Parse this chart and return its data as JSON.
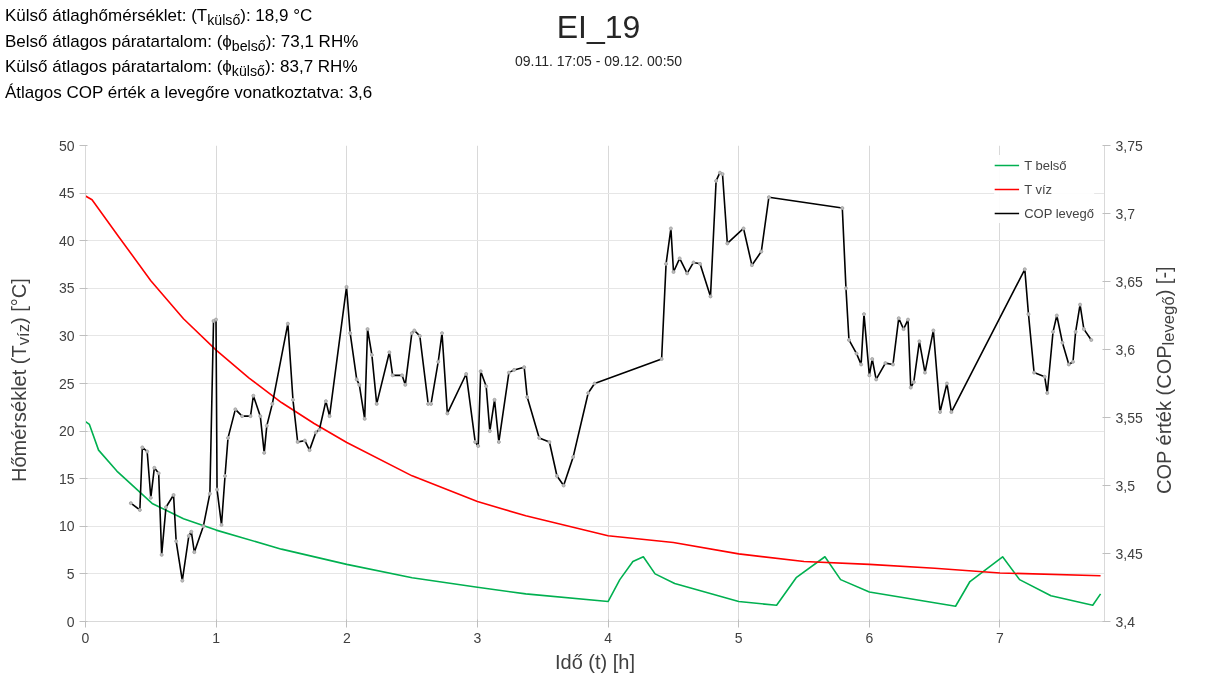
{
  "chart_data": {
    "type": "line",
    "title": "EI_19",
    "subtitle": "09.11. 17:05 - 09.12. 00:50",
    "annotations": [
      "Külső átlaghőmérséklet: (T$_{külső}$): 18,9 °C",
      "Belső átlagos páratartalom: (ϕ$_{belső}$): 73,1 RH%",
      "Külső átlagos páratartalom: (ϕ$_{külső}$): 83,7 RH%",
      "Átlagos COP érték a levegőre vonatkoztatva: 3,6"
    ],
    "xlabel": "Idő (t) [h]",
    "ylabel": "Hőmérséklet (T$_{víz}$) [°C]",
    "y2label": "COP érték (COP$_{levegő}$) [-]",
    "xlim": [
      0,
      7.8
    ],
    "xticks": [
      0,
      1,
      2,
      3,
      4,
      5,
      6,
      7
    ],
    "ylim": [
      0,
      50
    ],
    "yticks": [
      0,
      5,
      10,
      15,
      20,
      25,
      30,
      35,
      40,
      45,
      50
    ],
    "y2lim": [
      3.4,
      3.75
    ],
    "y2ticks": [
      {
        "value": 3.4,
        "label": "3,4"
      },
      {
        "value": 3.45,
        "label": "3,45"
      },
      {
        "value": 3.5,
        "label": "3,5"
      },
      {
        "value": 3.55,
        "label": "3,55"
      },
      {
        "value": 3.6,
        "label": "3,6"
      },
      {
        "value": 3.65,
        "label": "3,65"
      },
      {
        "value": 3.7,
        "label": "3,7"
      },
      {
        "value": 3.75,
        "label": "3,75"
      }
    ],
    "grid": true,
    "legend": "top right",
    "marker": "none",
    "line_style": "solid",
    "series": [
      {
        "name": "T belső",
        "color": "#00b050",
        "x": [
          0,
          0.03,
          0.1,
          0.24,
          0.51,
          0.75,
          1,
          1.5,
          2,
          2.5,
          3,
          3.37,
          4.0,
          4.09,
          4.19,
          4.27,
          4.36,
          4.51,
          5.0,
          5.29,
          5.44,
          5.66,
          5.78,
          6.0,
          6.66,
          6.77,
          7.02,
          7.15,
          7.39,
          7.71,
          7.77
        ],
        "values": [
          21.0,
          20.7,
          18.0,
          15.8,
          12.4,
          10.8,
          9.6,
          7.6,
          6.0,
          4.6,
          3.6,
          2.9,
          2.1,
          4.4,
          6.3,
          6.8,
          5.0,
          4.0,
          2.1,
          1.7,
          4.6,
          6.8,
          4.4,
          3.1,
          1.6,
          4.2,
          6.8,
          4.4,
          2.7,
          1.7,
          2.9
        ]
      },
      {
        "name": "T víz",
        "color": "#ff0000",
        "x": [
          0,
          0.05,
          0.25,
          0.5,
          0.75,
          1,
          1.25,
          1.5,
          1.75,
          2,
          2.5,
          3,
          3.37,
          4,
          4.5,
          5,
          5.5,
          6,
          6.5,
          7,
          7.77
        ],
        "values": [
          44.7,
          44.3,
          40.5,
          35.8,
          31.8,
          28.5,
          25.6,
          23.0,
          20.8,
          18.8,
          15.3,
          12.6,
          11.1,
          9.0,
          8.3,
          7.1,
          6.3,
          6.0,
          5.6,
          5.1,
          4.8
        ]
      },
      {
        "name": "COP levegő",
        "color": "#000000",
        "axis": "y2",
        "marker": "circle",
        "x": [
          0.347,
          0.416,
          0.435,
          0.472,
          0.5,
          0.527,
          0.56,
          0.583,
          0.616,
          0.674,
          0.694,
          0.741,
          0.791,
          0.81,
          0.833,
          0.902,
          0.952,
          0.98,
          0.999,
          1.007,
          1.041,
          1.068,
          1.091,
          1.147,
          1.199,
          1.263,
          1.285,
          1.338,
          1.368,
          1.388,
          1.43,
          1.549,
          1.588,
          1.624,
          1.679,
          1.715,
          1.763,
          1.79,
          1.84,
          1.868,
          1.998,
          2.026,
          2.076,
          2.096,
          2.137,
          2.159,
          2.192,
          2.229,
          2.326,
          2.351,
          2.423,
          2.448,
          2.498,
          2.517,
          2.559,
          2.623,
          2.645,
          2.7,
          2.729,
          2.77,
          2.914,
          2.983,
          3.006,
          3.025,
          3.067,
          3.095,
          3.131,
          3.164,
          3.241,
          3.281,
          3.358,
          3.381,
          3.473,
          3.551,
          3.609,
          3.66,
          3.733,
          3.848,
          3.897,
          4.41,
          4.444,
          4.481,
          4.501,
          4.548,
          4.605,
          4.654,
          4.704,
          4.784,
          4.827,
          4.856,
          4.876,
          4.913,
          5.037,
          5.101,
          5.173,
          5.231,
          5.793,
          5.821,
          5.844,
          5.902,
          5.937,
          5.959,
          6.0,
          6.022,
          6.052,
          6.123,
          6.181,
          6.225,
          6.262,
          6.296,
          6.317,
          6.34,
          6.383,
          6.426,
          6.49,
          6.541,
          6.594,
          6.628,
          7.19,
          7.218,
          7.261,
          7.342,
          7.362,
          7.406,
          7.435,
          7.478,
          7.527,
          7.559,
          7.579,
          7.613,
          7.642,
          7.699
        ],
        "values": [
          3.487,
          3.482,
          3.528,
          3.525,
          3.491,
          3.513,
          3.509,
          3.449,
          3.484,
          3.493,
          3.459,
          3.43,
          3.463,
          3.466,
          3.451,
          3.47,
          3.494,
          3.621,
          3.622,
          3.497,
          3.471,
          3.507,
          3.535,
          3.556,
          3.551,
          3.551,
          3.566,
          3.551,
          3.524,
          3.544,
          3.56,
          3.619,
          3.563,
          3.532,
          3.533,
          3.526,
          3.539,
          3.541,
          3.562,
          3.551,
          3.646,
          3.612,
          3.578,
          3.574,
          3.549,
          3.615,
          3.596,
          3.56,
          3.598,
          3.581,
          3.581,
          3.574,
          3.612,
          3.614,
          3.61,
          3.56,
          3.56,
          3.591,
          3.612,
          3.553,
          3.582,
          3.532,
          3.529,
          3.584,
          3.573,
          3.54,
          3.563,
          3.532,
          3.583,
          3.585,
          3.587,
          3.565,
          3.535,
          3.532,
          3.507,
          3.5,
          3.521,
          3.568,
          3.575,
          3.593,
          3.663,
          3.689,
          3.657,
          3.667,
          3.656,
          3.664,
          3.663,
          3.639,
          3.724,
          3.73,
          3.729,
          3.678,
          3.689,
          3.662,
          3.672,
          3.712,
          3.704,
          3.645,
          3.607,
          3.597,
          3.589,
          3.626,
          3.581,
          3.593,
          3.578,
          3.59,
          3.589,
          3.623,
          3.615,
          3.622,
          3.572,
          3.576,
          3.606,
          3.583,
          3.614,
          3.554,
          3.575,
          3.554,
          3.659,
          3.626,
          3.583,
          3.58,
          3.568,
          3.613,
          3.625,
          3.605,
          3.589,
          3.591,
          3.613,
          3.633,
          3.615,
          3.607
        ]
      }
    ]
  }
}
